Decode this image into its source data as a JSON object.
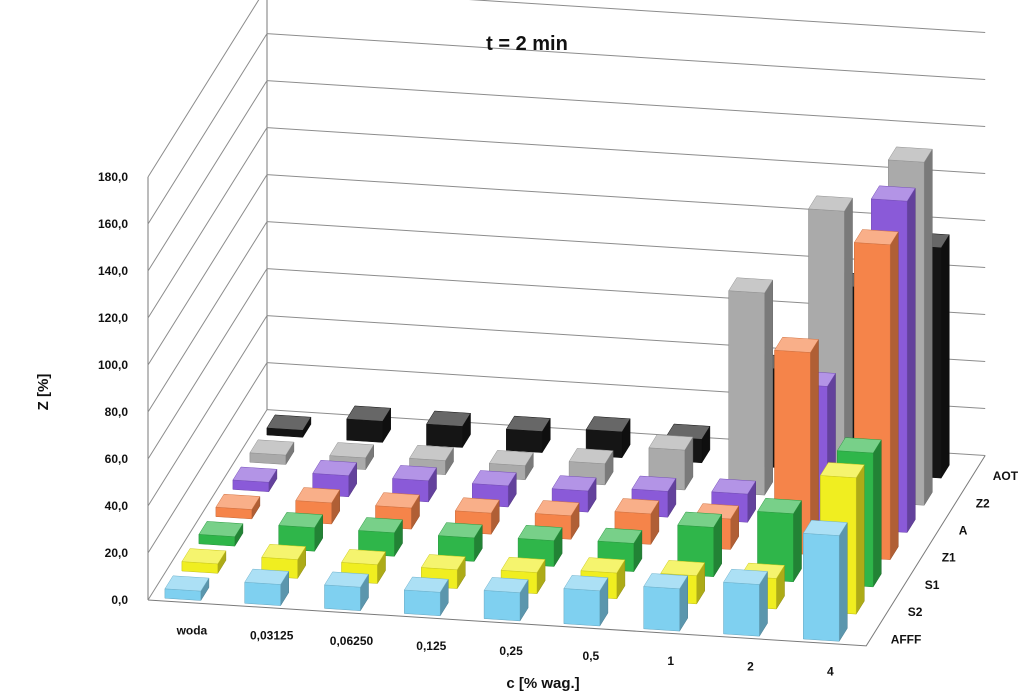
{
  "chart_data": {
    "type": "bar",
    "variant": "3d-column",
    "title": "t = 2 min",
    "xlabel": "c [% wag.]",
    "ylabel": "Z [%]",
    "categories": [
      "woda",
      "0,03125",
      "0,06250",
      "0,125",
      "0,25",
      "0,5",
      "1",
      "2",
      "4"
    ],
    "ylim": [
      0,
      180
    ],
    "yticks": [
      "0,0",
      "20,0",
      "40,0",
      "60,0",
      "80,0",
      "100,0",
      "120,0",
      "140,0",
      "160,0",
      "180,0"
    ],
    "grid": true,
    "series": [
      {
        "name": "AFFF",
        "color": "#7fd0f0",
        "values": [
          4,
          9,
          10,
          10,
          12,
          15,
          18,
          22,
          45
        ]
      },
      {
        "name": "S2",
        "color": "#f0ee20",
        "values": [
          4,
          8,
          8,
          8,
          9,
          11,
          12,
          13,
          58
        ]
      },
      {
        "name": "S1",
        "color": "#2fb64a",
        "values": [
          4,
          10,
          10,
          10,
          11,
          12,
          21,
          29,
          57
        ]
      },
      {
        "name": "Z1",
        "color": "#f5844a",
        "values": [
          4,
          9,
          9,
          9,
          10,
          13,
          13,
          86,
          134
        ]
      },
      {
        "name": "A",
        "color": "#8a5ad8",
        "values": [
          4,
          9,
          9,
          9,
          9,
          11,
          12,
          60,
          141
        ]
      },
      {
        "name": "Z2",
        "color": "#aaaaaa",
        "values": [
          4,
          5,
          6,
          6,
          9,
          17,
          86,
          123,
          146
        ]
      },
      {
        "name": "AOT",
        "color": "#151515",
        "values": [
          3,
          9,
          9,
          9,
          11,
          10,
          42,
          79,
          98
        ]
      }
    ]
  }
}
